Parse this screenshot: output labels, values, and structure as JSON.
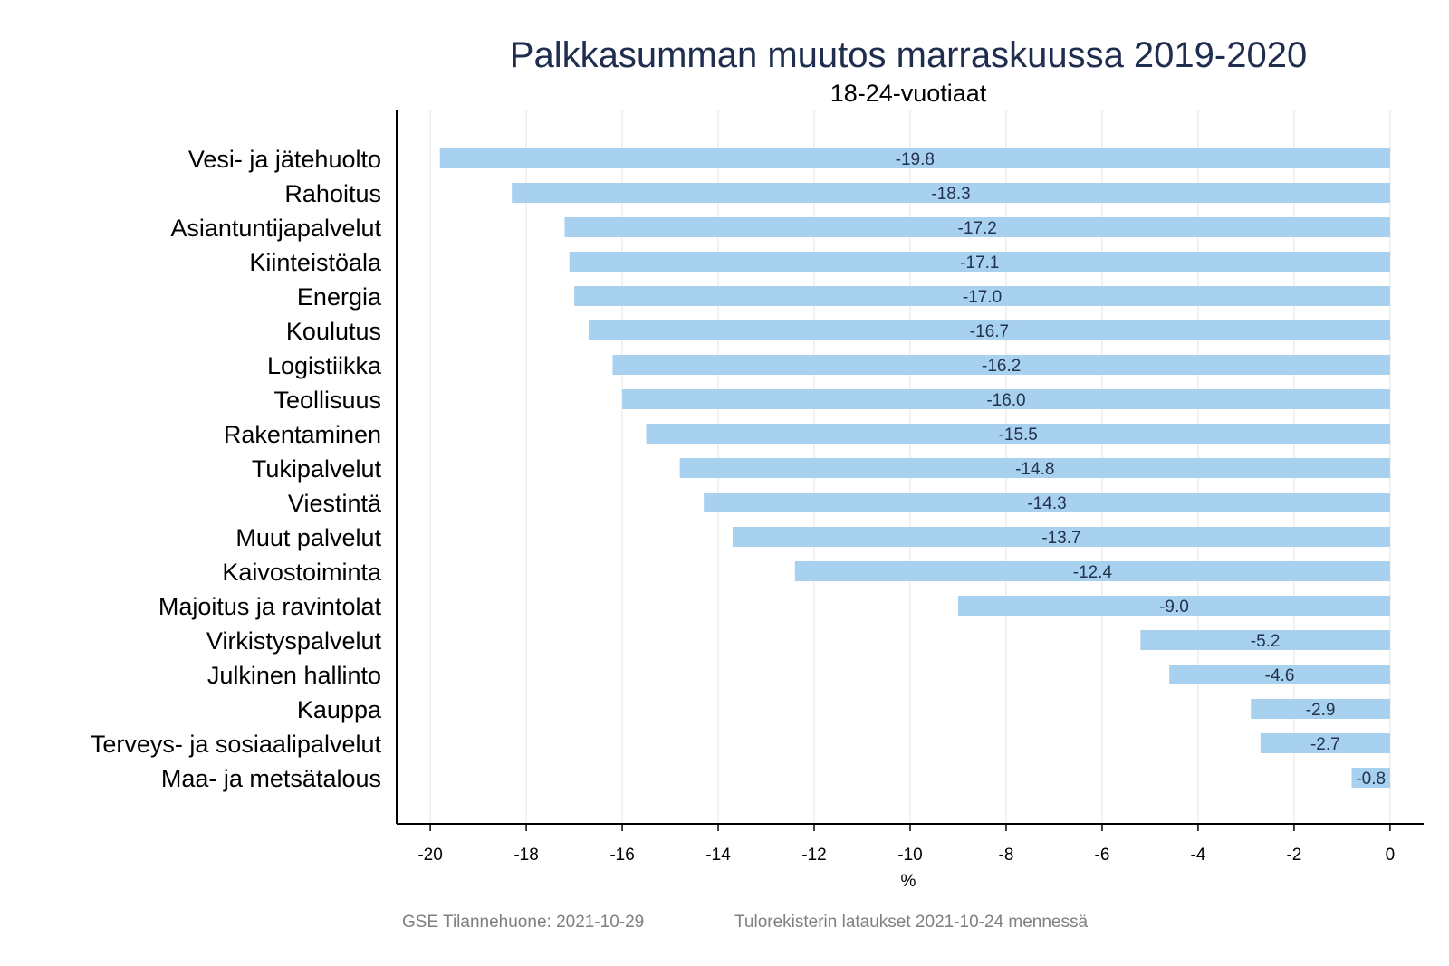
{
  "chart_data": {
    "type": "bar",
    "orientation": "horizontal",
    "title": "Palkkasumman muutos marraskuussa 2019-2020",
    "subtitle": "18-24-vuotiaat",
    "xlabel": "%",
    "ylabel": "",
    "xlim": [
      -20.7,
      0.7
    ],
    "xticks": [
      -20,
      -18,
      -16,
      -14,
      -12,
      -10,
      -8,
      -6,
      -4,
      -2,
      0
    ],
    "grid": true,
    "bar_color": "#a8d1ef",
    "categories": [
      "Vesi- ja jätehuolto",
      "Rahoitus",
      "Asiantuntijapalvelut",
      "Kiinteistöala",
      "Energia",
      "Koulutus",
      "Logistiikka",
      "Teollisuus",
      "Rakentaminen",
      "Tukipalvelut",
      "Viestintä",
      "Muut palvelut",
      "Kaivostoiminta",
      "Majoitus ja ravintolat",
      "Virkistyspalvelut",
      "Julkinen hallinto",
      "Kauppa",
      "Terveys- ja sosiaalipalvelut",
      "Maa- ja metsätalous"
    ],
    "values": [
      -19.8,
      -18.3,
      -17.2,
      -17.1,
      -17.0,
      -16.7,
      -16.2,
      -16.0,
      -15.5,
      -14.8,
      -14.3,
      -13.7,
      -12.4,
      -9.0,
      -5.2,
      -4.6,
      -2.9,
      -2.7,
      -0.8
    ],
    "value_labels": [
      "-19.8",
      "-18.3",
      "-17.2",
      "-17.1",
      "-17.0",
      "-16.7",
      "-16.2",
      "-16.0",
      "-15.5",
      "-14.8",
      "-14.3",
      "-13.7",
      "-12.4",
      "-9.0",
      "-5.2",
      "-4.6",
      "-2.9",
      "-2.7",
      "-0.8"
    ]
  },
  "footer": {
    "source": "GSE Tilannehuone: 2021-10-29",
    "note": "Tulorekisterin lataukset 2021-10-24 mennessä"
  }
}
